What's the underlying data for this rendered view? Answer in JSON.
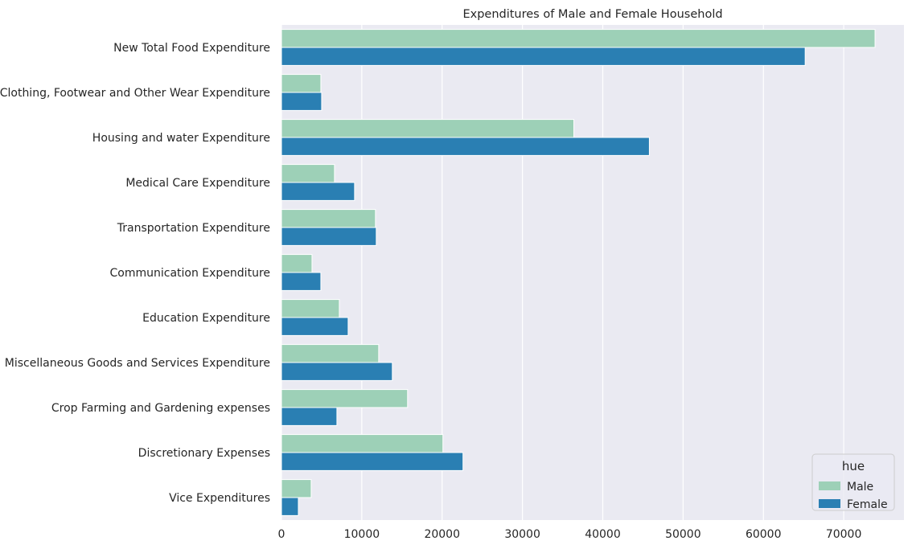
{
  "chart_data": {
    "type": "bar",
    "orientation": "horizontal",
    "title": "Expenditures of Male and Female Household",
    "xlabel": "",
    "ylabel": "",
    "xlim": [
      0,
      77500
    ],
    "xticks": [
      0,
      10000,
      20000,
      30000,
      40000,
      50000,
      60000,
      70000
    ],
    "grid": true,
    "categories": [
      "New Total Food Expenditure",
      "Clothing, Footwear and Other Wear Expenditure",
      "Housing and water Expenditure",
      "Medical Care Expenditure",
      "Transportation Expenditure",
      "Communication Expenditure",
      "Education Expenditure",
      "Miscellaneous Goods and Services Expenditure",
      "Crop Farming and Gardening expenses",
      "Discretionary Expenses",
      "Vice Expenditures"
    ],
    "series": [
      {
        "name": "Male",
        "color": "#9dd0b7",
        "values": [
          73900,
          4900,
          36400,
          6600,
          11700,
          3800,
          7200,
          12100,
          15700,
          20100,
          3700
        ]
      },
      {
        "name": "Female",
        "color": "#2a7fb3",
        "values": [
          65200,
          5000,
          45800,
          9100,
          11800,
          4900,
          8300,
          13800,
          6900,
          22600,
          2100
        ]
      }
    ],
    "legend": {
      "title": "hue",
      "placement": "lower-right"
    }
  },
  "colors": {
    "plot_background": "#eaeaf2",
    "grid": "#ffffff",
    "text": "#262626"
  }
}
